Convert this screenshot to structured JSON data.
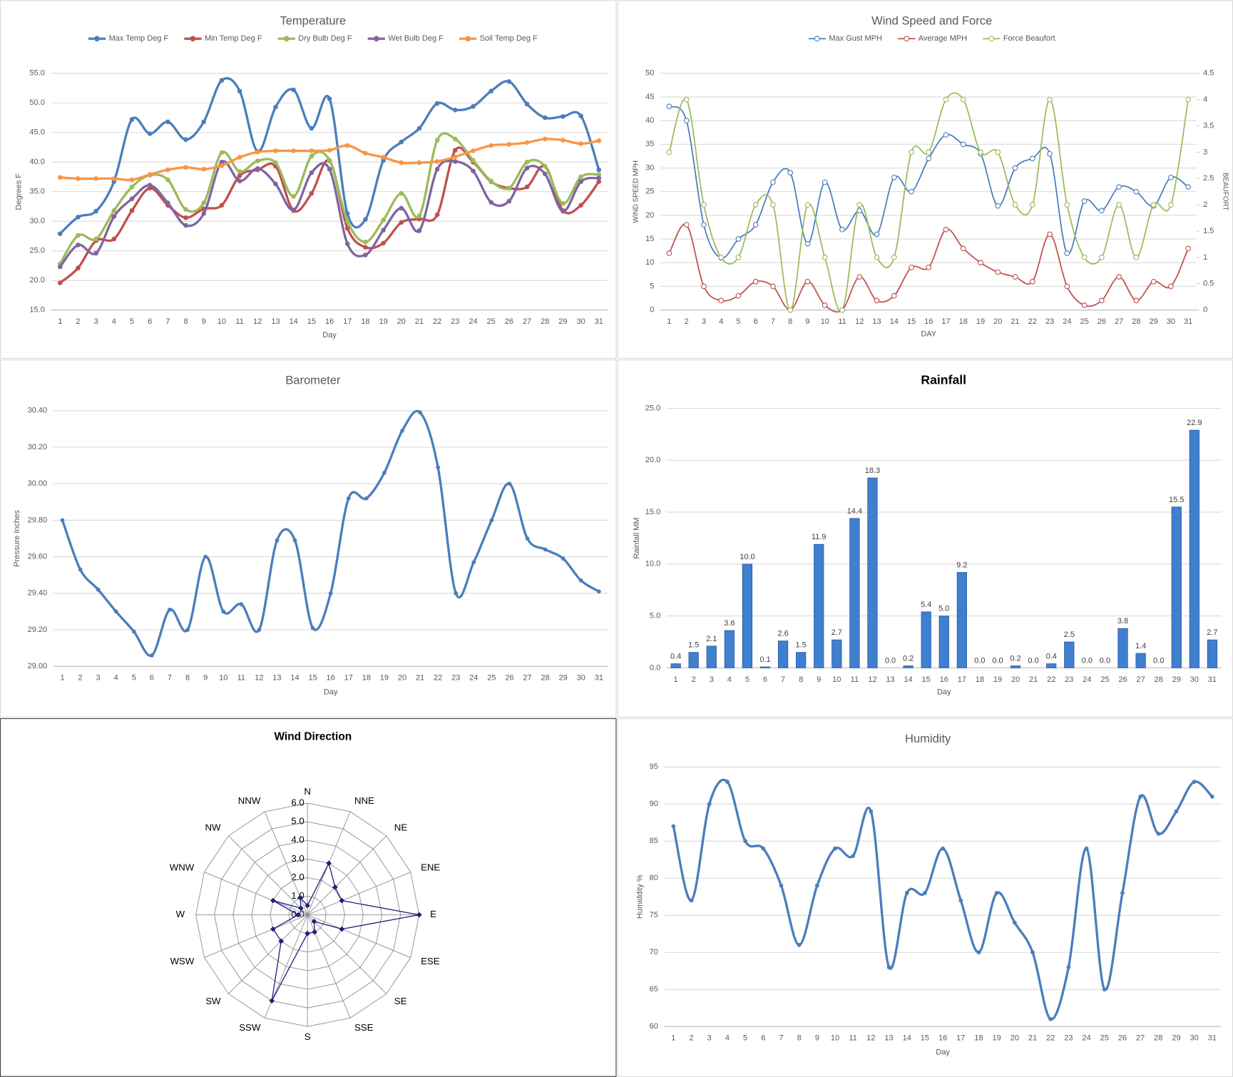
{
  "chart_data": [
    {
      "type": "line",
      "title": "Temperature",
      "x_label": "Day",
      "y_label": "Degrees F",
      "legend": "top",
      "markers": "filled",
      "categories": [
        "1",
        "2",
        "3",
        "4",
        "5",
        "6",
        "7",
        "8",
        "9",
        "10",
        "11",
        "12",
        "13",
        "14",
        "15",
        "16",
        "17",
        "18",
        "19",
        "20",
        "21",
        "22",
        "23",
        "24",
        "25",
        "26",
        "27",
        "28",
        "29",
        "30",
        "31"
      ],
      "ylim": [
        15,
        55
      ],
      "yticks": [
        {
          "value": 15,
          "label": "15.0"
        },
        {
          "value": 20,
          "label": "20.0"
        },
        {
          "value": 25,
          "label": "25.0"
        },
        {
          "value": 30,
          "label": "30.0"
        },
        {
          "value": 35,
          "label": "35.0"
        },
        {
          "value": 40,
          "label": "40.0"
        },
        {
          "value": 45,
          "label": "45.0"
        },
        {
          "value": 50,
          "label": "50.0"
        },
        {
          "value": 55,
          "label": "55.0"
        }
      ],
      "grid": true,
      "series": [
        {
          "name": "Max Temp Deg F",
          "color": "#4a7ebb",
          "values": [
            27.9,
            30.7,
            31.7,
            36.7,
            47.2,
            44.8,
            46.8,
            43.8,
            46.8,
            53.8,
            52.0,
            41.8,
            49.3,
            52.2,
            45.7,
            50.7,
            31.3,
            30.3,
            40.3,
            43.4,
            45.7,
            49.9,
            48.8,
            49.4,
            52.0,
            53.6,
            49.8,
            47.5,
            47.7,
            47.8,
            38.7
          ]
        },
        {
          "name": "Min Temp Deg F",
          "color": "#c0504d",
          "values": [
            19.6,
            22.1,
            26.7,
            27.0,
            31.8,
            35.6,
            32.7,
            30.6,
            32.1,
            32.7,
            37.7,
            38.7,
            39.3,
            31.8,
            34.7,
            40.2,
            28.8,
            25.6,
            26.3,
            29.8,
            30.4,
            31.1,
            42.0,
            40.0,
            36.7,
            35.6,
            35.8,
            39.3,
            31.8,
            32.7,
            36.7
          ]
        },
        {
          "name": "Dry Bulb Deg F",
          "color": "#9bbb59",
          "values": [
            22.8,
            27.6,
            27.0,
            31.8,
            35.8,
            37.8,
            37.0,
            32.0,
            33.1,
            41.6,
            38.4,
            40.2,
            39.9,
            34.2,
            41.0,
            40.3,
            30.0,
            26.5,
            30.2,
            34.7,
            30.9,
            43.7,
            43.9,
            40.3,
            36.8,
            35.6,
            40.0,
            39.3,
            33.0,
            37.5,
            37.9
          ]
        },
        {
          "name": "Wet Bulb Deg F",
          "color": "#8064a2",
          "values": [
            22.3,
            26.0,
            24.6,
            30.8,
            33.8,
            36.1,
            33.1,
            29.3,
            31.3,
            40.0,
            36.8,
            38.9,
            36.3,
            31.9,
            38.2,
            38.8,
            26.2,
            24.3,
            28.5,
            32.2,
            28.4,
            38.8,
            40.1,
            38.5,
            33.2,
            33.4,
            39.0,
            38.0,
            31.7,
            36.7,
            37.3
          ]
        },
        {
          "name": "Soil Temp Deg F",
          "color": "#f79646",
          "values": [
            37.4,
            37.2,
            37.2,
            37.2,
            37.0,
            37.9,
            38.7,
            39.1,
            38.8,
            39.4,
            40.8,
            41.7,
            41.9,
            41.9,
            41.9,
            42.0,
            42.8,
            41.5,
            40.8,
            39.9,
            39.9,
            40.1,
            40.9,
            41.9,
            42.8,
            43.0,
            43.3,
            43.9,
            43.7,
            43.1,
            43.6
          ]
        }
      ]
    },
    {
      "type": "line",
      "title": "Wind Speed and Force",
      "x_label": "DAY",
      "y_label": "WIND SPEED MPH",
      "y2_label": "BEAUFORT",
      "legend": "top",
      "markers": "hollow",
      "categories": [
        "1",
        "2",
        "3",
        "4",
        "5",
        "6",
        "7",
        "8",
        "9",
        "10",
        "11",
        "12",
        "13",
        "14",
        "15",
        "16",
        "17",
        "18",
        "19",
        "20",
        "21",
        "22",
        "23",
        "24",
        "25",
        "26",
        "27",
        "28",
        "29",
        "30",
        "31"
      ],
      "ylim": [
        0,
        50
      ],
      "yticks": [
        0,
        5,
        10,
        15,
        20,
        25,
        30,
        35,
        40,
        45,
        50
      ],
      "y2lim": [
        0,
        4.5
      ],
      "y2ticks": [
        0,
        0.5,
        1,
        1.5,
        2,
        2.5,
        3,
        3.5,
        4,
        4.5
      ],
      "grid": true,
      "series": [
        {
          "name": "Max Gust MPH",
          "color": "#4a7ebb",
          "values": [
            43,
            40,
            18,
            11,
            15,
            18,
            27,
            29,
            14,
            27,
            17,
            21,
            16,
            28,
            25,
            32,
            37,
            35,
            33,
            22,
            30,
            32,
            33,
            12,
            23,
            21,
            26,
            25,
            22,
            28,
            26
          ]
        },
        {
          "name": "Average MPH",
          "color": "#c0504d",
          "values": [
            12,
            18,
            5,
            2,
            3,
            6,
            5,
            0,
            6,
            1,
            0,
            7,
            2,
            3,
            9,
            9,
            17,
            13,
            10,
            8,
            7,
            6,
            16,
            5,
            1,
            2,
            7,
            2,
            6,
            5,
            13
          ]
        },
        {
          "name": "Force Beaufort",
          "color": "#9bbb59",
          "axis": "y2",
          "values": [
            3,
            4,
            2,
            1,
            1,
            2,
            2,
            0,
            2,
            1,
            0,
            2,
            1,
            1,
            3,
            3,
            4,
            4,
            3,
            3,
            2,
            2,
            4,
            2,
            1,
            1,
            2,
            1,
            2,
            2,
            4
          ]
        }
      ]
    },
    {
      "type": "line",
      "title": "Barometer",
      "x_label": "Day",
      "y_label": "Pressure Inches",
      "markers": "filled",
      "categories": [
        "1",
        "2",
        "3",
        "4",
        "5",
        "6",
        "7",
        "8",
        "9",
        "10",
        "11",
        "12",
        "13",
        "14",
        "15",
        "16",
        "17",
        "18",
        "19",
        "20",
        "21",
        "22",
        "23",
        "24",
        "25",
        "26",
        "27",
        "28",
        "29",
        "30",
        "31"
      ],
      "ylim": [
        29,
        30.4
      ],
      "yticks": [
        {
          "value": 29,
          "label": "29.00"
        },
        {
          "value": 29.2,
          "label": "29.20"
        },
        {
          "value": 29.4,
          "label": "29.40"
        },
        {
          "value": 29.6,
          "label": "29.60"
        },
        {
          "value": 29.8,
          "label": "29.80"
        },
        {
          "value": 30,
          "label": "30.00"
        },
        {
          "value": 30.2,
          "label": "30.20"
        },
        {
          "value": 30.4,
          "label": "30.40"
        }
      ],
      "grid": true,
      "series": [
        {
          "color": "#4a7ebb",
          "values": [
            29.8,
            29.53,
            29.42,
            29.3,
            29.19,
            29.06,
            29.31,
            29.2,
            29.6,
            29.3,
            29.34,
            29.2,
            29.69,
            29.69,
            29.21,
            29.4,
            29.92,
            29.92,
            30.06,
            30.29,
            30.39,
            30.09,
            29.4,
            29.57,
            29.8,
            30.0,
            29.7,
            29.64,
            29.59,
            29.47,
            29.41
          ]
        }
      ]
    },
    {
      "type": "bar",
      "title": "Rainfall",
      "x_label": "Day",
      "y_label": "Rainfall MM",
      "color": "#3f7fcf",
      "categories": [
        "1",
        "2",
        "3",
        "4",
        "5",
        "6",
        "7",
        "8",
        "9",
        "10",
        "11",
        "12",
        "13",
        "14",
        "15",
        "16",
        "17",
        "18",
        "19",
        "20",
        "21",
        "22",
        "23",
        "24",
        "25",
        "26",
        "27",
        "28",
        "29",
        "30",
        "31"
      ],
      "values": [
        0.4,
        1.5,
        2.1,
        3.6,
        10,
        0.1,
        2.6,
        1.5,
        11.9,
        2.7,
        14.4,
        18.3,
        0,
        0.2,
        5.4,
        5,
        9.2,
        0,
        0,
        0.2,
        0,
        0.4,
        2.5,
        0,
        0,
        3.8,
        1.4,
        0,
        15.5,
        22.9,
        2.7
      ],
      "value_labels": [
        "0.4",
        "1.5",
        "2.1",
        "3.6",
        "10.0",
        "0.1",
        "2.6",
        "1.5",
        "11.9",
        "2.7",
        "14.4",
        "18.3",
        "0.0",
        "0.2",
        "5.4",
        "5.0",
        "9.2",
        "0.0",
        "0.0",
        "0.2",
        "0.0",
        "0.4",
        "2.5",
        "0.0",
        "0.0",
        "3.8",
        "1.4",
        "0.0",
        "15.5",
        "22.9",
        "2.7"
      ],
      "ylim": [
        0,
        25
      ],
      "yticks": [
        {
          "value": 0,
          "label": "0.0"
        },
        {
          "value": 5,
          "label": "5.0"
        },
        {
          "value": 10,
          "label": "10.0"
        },
        {
          "value": 15,
          "label": "15.0"
        },
        {
          "value": 20,
          "label": "20.0"
        },
        {
          "value": 25,
          "label": "25.0"
        }
      ],
      "grid": true
    },
    {
      "type": "radar",
      "title": "Wind Direction",
      "color": "#1f1f7a",
      "categories": [
        "N",
        "NNE",
        "NE",
        "ENE",
        "E",
        "ESE",
        "SE",
        "SSE",
        "S",
        "SSW",
        "SW",
        "WSW",
        "W",
        "WNW",
        "NW",
        "NNW"
      ],
      "values": [
        0.5,
        3.0,
        2.1,
        2.0,
        6.0,
        2.0,
        0.5,
        1.0,
        1.0,
        5.0,
        2.0,
        2.0,
        0.5,
        2.0,
        0.5,
        1.0
      ],
      "rlim": [
        0,
        6
      ],
      "rticks": [
        {
          "value": 0,
          "label": "0.0"
        },
        {
          "value": 1,
          "label": "1.0"
        },
        {
          "value": 2,
          "label": "2.0"
        },
        {
          "value": 3,
          "label": "3.0"
        },
        {
          "value": 4,
          "label": "4.0"
        },
        {
          "value": 5,
          "label": "5.0"
        },
        {
          "value": 6,
          "label": "6.0"
        }
      ]
    },
    {
      "type": "line",
      "title": "Humidity",
      "x_label": "Day",
      "y_label": "Humiddity %",
      "markers": "filled",
      "categories": [
        "1",
        "2",
        "3",
        "4",
        "5",
        "6",
        "7",
        "8",
        "9",
        "10",
        "11",
        "12",
        "13",
        "14",
        "15",
        "16",
        "17",
        "18",
        "19",
        "20",
        "21",
        "22",
        "23",
        "24",
        "25",
        "26",
        "27",
        "28",
        "29",
        "30",
        "31"
      ],
      "ylim": [
        60,
        95
      ],
      "yticks": [
        60,
        65,
        70,
        75,
        80,
        85,
        90,
        95
      ],
      "grid": true,
      "series": [
        {
          "color": "#4a7ebb",
          "values": [
            87,
            77,
            90,
            93,
            85,
            84,
            79,
            71,
            79,
            84,
            83,
            89,
            68,
            78,
            78,
            84,
            77,
            70,
            78,
            74,
            70,
            61,
            68,
            84,
            65,
            78,
            91,
            86,
            89,
            93,
            91
          ]
        }
      ]
    }
  ]
}
